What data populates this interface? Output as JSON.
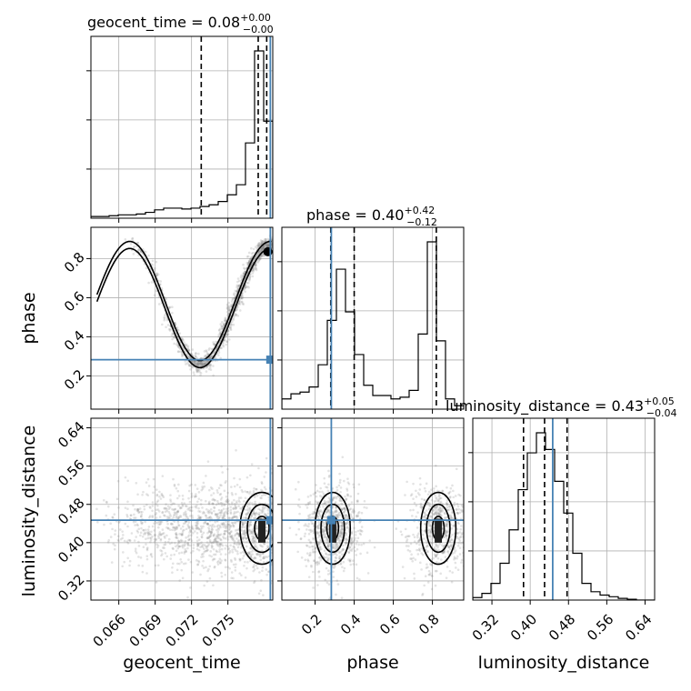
{
  "chart_data": {
    "type": "scatter",
    "variables": [
      "geocent_time",
      "phase",
      "luminosity_distance"
    ],
    "axis_labels": {
      "geocent_time": "geocent_time",
      "phase": "phase",
      "luminosity_distance": "luminosity_distance"
    },
    "ranges": {
      "geocent_time": [
        0.0637,
        0.0787
      ],
      "phase": [
        0.03,
        0.96
      ],
      "luminosity_distance": [
        0.28,
        0.66
      ]
    },
    "ticks": {
      "geocent_time": [
        0.066,
        0.069,
        0.072,
        0.075
      ],
      "phase": [
        0.2,
        0.4,
        0.6,
        0.8
      ],
      "luminosity_distance": [
        0.32,
        0.4,
        0.48,
        0.56,
        0.64
      ]
    },
    "tick_labels": {
      "geocent_time": [
        "0.066",
        "0.069",
        "0.072",
        "0.075"
      ],
      "phase": [
        "0.2",
        "0.4",
        "0.6",
        "0.8"
      ],
      "luminosity_distance": [
        "0.32",
        "0.40",
        "0.48",
        "0.56",
        "0.64"
      ]
    },
    "truths": {
      "geocent_time": 0.0785,
      "phase": 0.283,
      "luminosity_distance": 0.447
    },
    "titles": {
      "geocent_time": {
        "main": "geocent_time = 0.08",
        "upper": "+0.00",
        "lower": "−0.00"
      },
      "phase": {
        "main": "phase = 0.40",
        "upper": "+0.42",
        "lower": "−0.12"
      },
      "luminosity_distance": {
        "main": "luminosity_distance = 0.43",
        "upper": "+0.05",
        "lower": "−0.04"
      }
    },
    "quantiles": {
      "geocent_time": [
        0.0728,
        0.0775,
        0.0782
      ],
      "phase": [
        0.28,
        0.4,
        0.82
      ],
      "luminosity_distance": [
        0.386,
        0.43,
        0.477
      ]
    },
    "histograms": {
      "geocent_time": {
        "edges": [
          0.0637,
          0.06445,
          0.0652,
          0.06595,
          0.0667,
          0.06745,
          0.0682,
          0.06895,
          0.0697,
          0.07045,
          0.0712,
          0.07195,
          0.0727,
          0.07345,
          0.0742,
          0.07495,
          0.0757,
          0.07645,
          0.0772,
          0.07795,
          0.0787
        ],
        "counts": [
          0.01,
          0.01,
          0.015,
          0.02,
          0.02,
          0.025,
          0.035,
          0.05,
          0.06,
          0.06,
          0.055,
          0.06,
          0.07,
          0.08,
          0.1,
          0.14,
          0.2,
          0.45,
          1.0,
          0.58
        ]
      },
      "phase": {
        "edges": [
          0.03,
          0.0765,
          0.123,
          0.1695,
          0.216,
          0.2625,
          0.309,
          0.3555,
          0.402,
          0.4485,
          0.495,
          0.5415,
          0.588,
          0.6345,
          0.681,
          0.7275,
          0.774,
          0.8205,
          0.867,
          0.9135,
          0.96
        ],
        "counts": [
          0.06,
          0.09,
          0.1,
          0.13,
          0.26,
          0.52,
          0.82,
          0.57,
          0.32,
          0.14,
          0.08,
          0.08,
          0.06,
          0.07,
          0.11,
          0.44,
          0.98,
          0.4,
          0.06,
          0.02
        ]
      },
      "luminosity_distance": {
        "edges": [
          0.28,
          0.299,
          0.318,
          0.337,
          0.356,
          0.375,
          0.394,
          0.413,
          0.432,
          0.451,
          0.47,
          0.489,
          0.508,
          0.527,
          0.546,
          0.565,
          0.584,
          0.603,
          0.622,
          0.641,
          0.66
        ],
        "counts": [
          0.015,
          0.04,
          0.1,
          0.22,
          0.42,
          0.66,
          0.88,
          1.0,
          0.9,
          0.71,
          0.52,
          0.28,
          0.1,
          0.05,
          0.03,
          0.02,
          0.01,
          0.005,
          0.0,
          0.0
        ]
      }
    },
    "scatter_spread": {
      "phase_vs_geocent_time": {
        "ridge_upper_phase": 0.87,
        "ridge_lower_phase": 0.26
      },
      "luminosity_distance_vs_phase": {
        "mode_phases": [
          0.29,
          0.83
        ],
        "mode_distance": 0.43
      }
    },
    "grid": true
  }
}
